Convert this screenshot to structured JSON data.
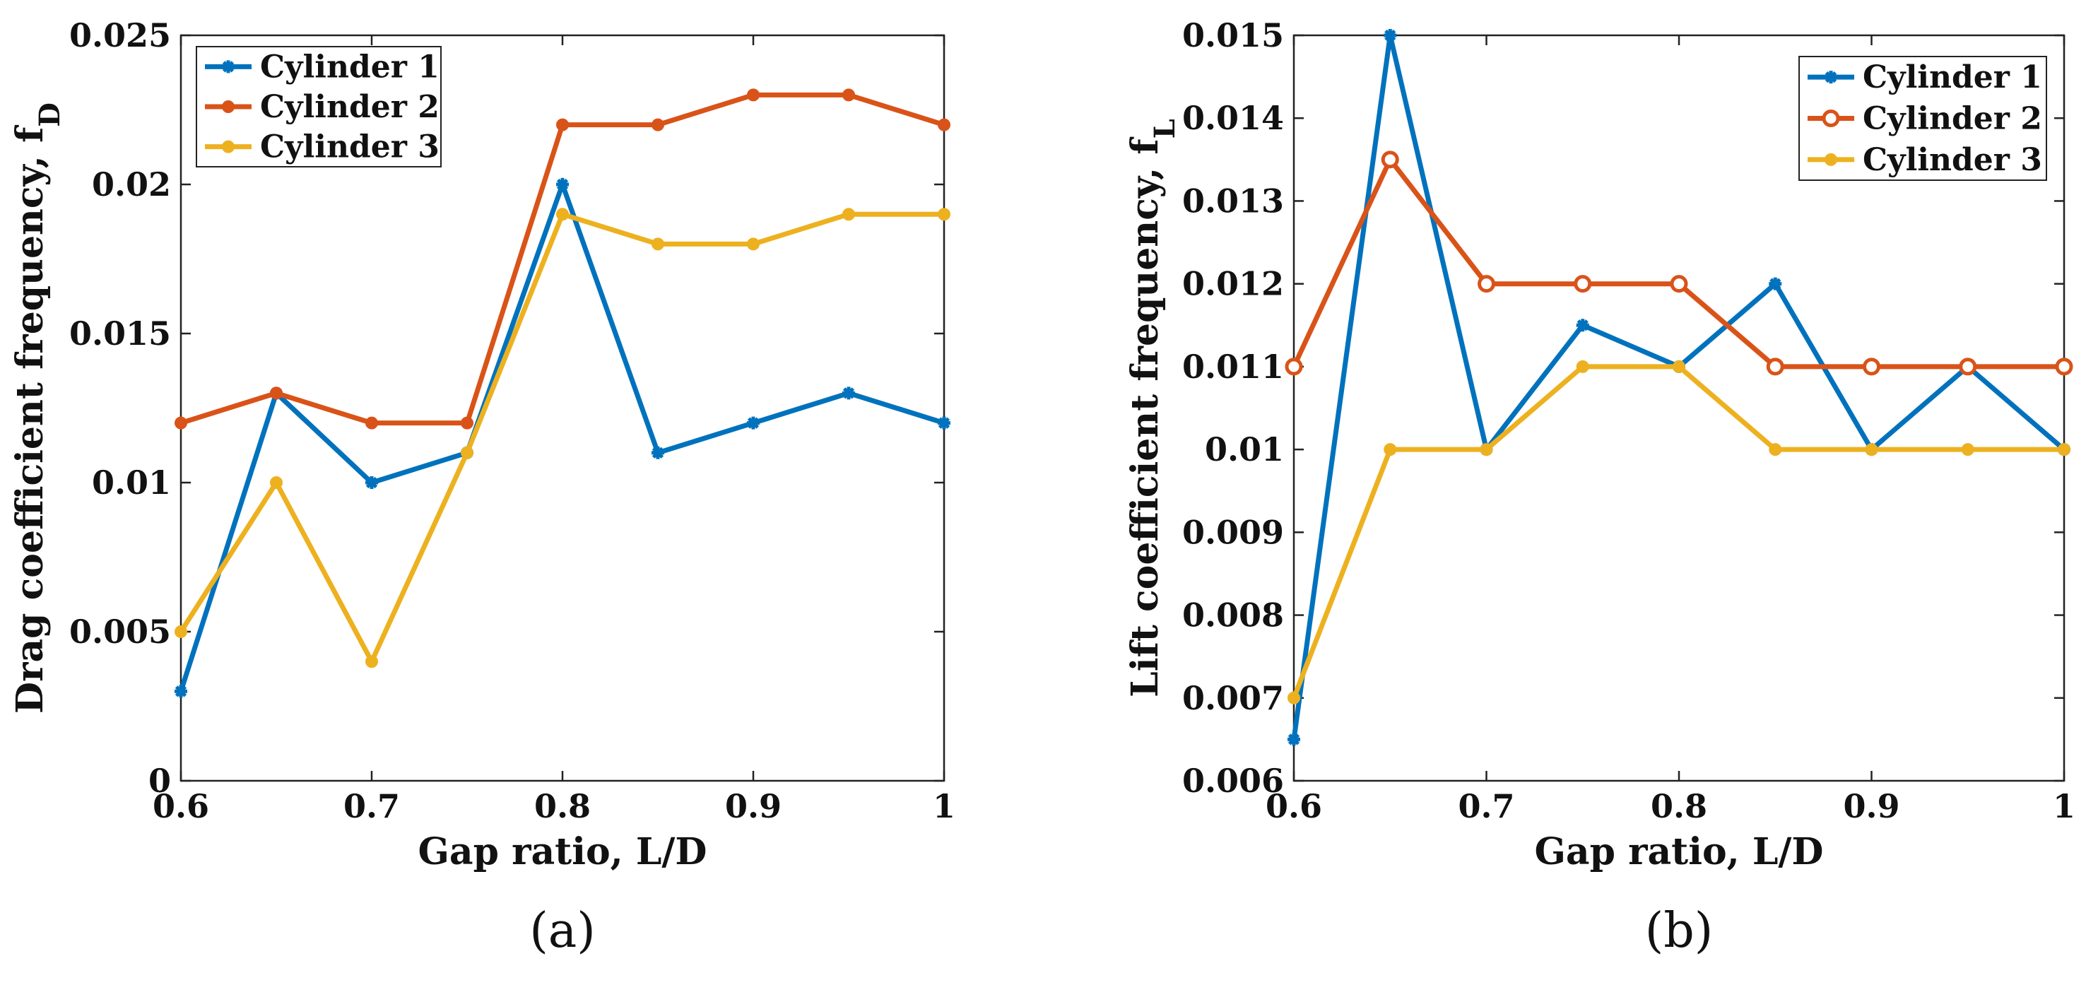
{
  "chart_data": [
    {
      "type": "line",
      "panel_label": "(a)",
      "xlabel": "Gap ratio, L/D",
      "ylabel": "Drag coefficient frequency, f",
      "ylabel_subscript": "D",
      "xlim": [
        0.6,
        1
      ],
      "ylim": [
        0,
        0.025
      ],
      "xticks": [
        "0.6",
        "0.7",
        "0.8",
        "0.9",
        "1"
      ],
      "yticks": [
        "0",
        "0.005",
        "0.01",
        "0.015",
        "0.02",
        "0.025"
      ],
      "grid": false,
      "legend": "top-left",
      "x": [
        0.6,
        0.65,
        0.7,
        0.75,
        0.8,
        0.85,
        0.9,
        0.95,
        1.0
      ],
      "series": [
        {
          "name": "Cylinder 1",
          "color": "#0072BD",
          "marker": "star",
          "values": [
            0.003,
            0.013,
            0.01,
            0.011,
            0.02,
            0.011,
            0.012,
            0.013,
            0.012
          ]
        },
        {
          "name": "Cylinder 2",
          "color": "#D95319",
          "marker": "dot",
          "values": [
            0.012,
            0.013,
            0.012,
            0.012,
            0.022,
            0.022,
            0.023,
            0.023,
            0.022
          ]
        },
        {
          "name": "Cylinder 3",
          "color": "#EDB120",
          "marker": "dot",
          "values": [
            0.005,
            0.01,
            0.004,
            0.011,
            0.019,
            0.018,
            0.018,
            0.019,
            0.019
          ]
        }
      ]
    },
    {
      "type": "line",
      "panel_label": "(b)",
      "xlabel": "Gap ratio, L/D",
      "ylabel": "Lift coefficient frequency, f",
      "ylabel_subscript": "L",
      "xlim": [
        0.6,
        1
      ],
      "ylim": [
        0.006,
        0.015
      ],
      "xticks": [
        "0.6",
        "0.7",
        "0.8",
        "0.9",
        "1"
      ],
      "yticks": [
        "0.006",
        "0.007",
        "0.008",
        "0.009",
        "0.01",
        "0.011",
        "0.012",
        "0.013",
        "0.014",
        "0.015"
      ],
      "grid": false,
      "legend": "top-right",
      "x": [
        0.6,
        0.65,
        0.7,
        0.75,
        0.8,
        0.85,
        0.9,
        0.95,
        1.0
      ],
      "series": [
        {
          "name": "Cylinder 1",
          "color": "#0072BD",
          "marker": "star",
          "values": [
            0.0065,
            0.015,
            0.01,
            0.0115,
            0.011,
            0.012,
            0.01,
            0.011,
            0.01
          ]
        },
        {
          "name": "Cylinder 2",
          "color": "#D95319",
          "marker": "circle",
          "values": [
            0.011,
            0.0135,
            0.012,
            0.012,
            0.012,
            0.011,
            0.011,
            0.011,
            0.011
          ]
        },
        {
          "name": "Cylinder 3",
          "color": "#EDB120",
          "marker": "dot",
          "values": [
            0.007,
            0.01,
            0.01,
            0.011,
            0.011,
            0.01,
            0.01,
            0.01,
            0.01
          ]
        }
      ]
    }
  ]
}
